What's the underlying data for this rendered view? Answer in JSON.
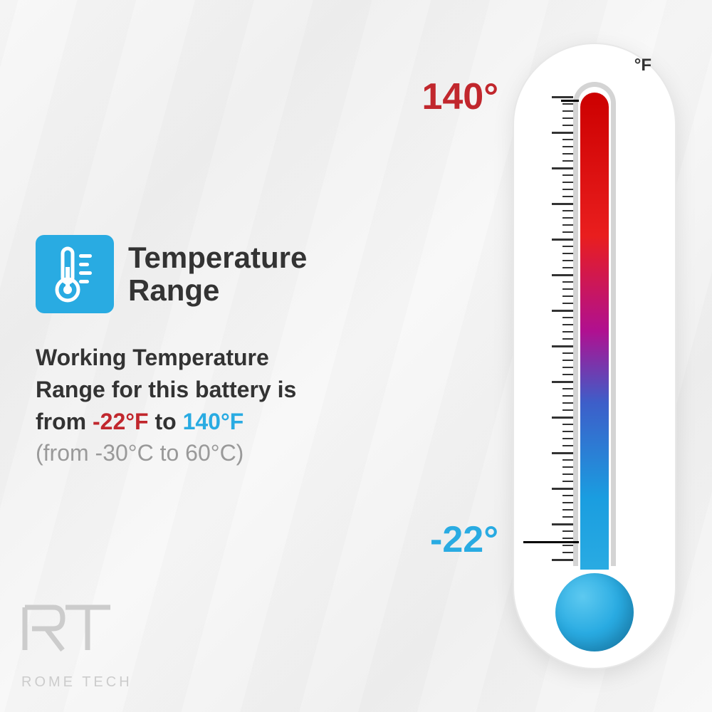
{
  "title": "Temperature Range",
  "description": {
    "line1": "Working Temperature",
    "line2": "Range for this battery is",
    "from_word": "from ",
    "low_f": "-22°F",
    "to_word": " to ",
    "high_f": "140°F",
    "celsius": "(from -30°C to 60°C)"
  },
  "thermometer": {
    "unit": "°F",
    "high_label": "140°",
    "low_label": "-22°",
    "high_color": "#c1272d",
    "low_color": "#29abe2",
    "gradient_top": "#cc0000",
    "gradient_bottom": "#29abe2",
    "body_color": "#ffffff",
    "border_color": "#e8e8e8"
  },
  "icon": {
    "bg_color": "#29abe2",
    "fg_color": "#ffffff"
  },
  "logo": {
    "initials": "RT",
    "brand": "ROME TECH",
    "color": "#cccccc"
  },
  "colors": {
    "text_primary": "#333333",
    "text_muted": "#999999",
    "background": "#f5f5f5"
  }
}
